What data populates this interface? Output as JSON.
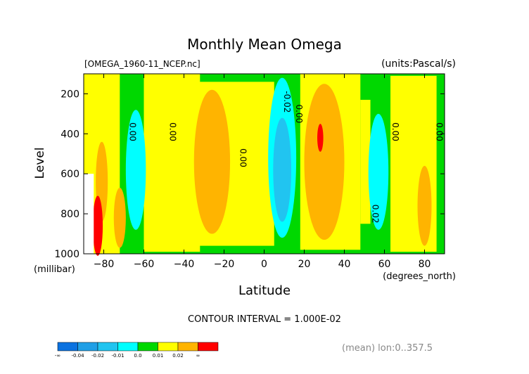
{
  "chart_data": {
    "type": "contour",
    "title": "Monthly Mean Omega",
    "file_label": "[OMEGA_1960-11_NCEP.nc]",
    "units_label": "(units:Pascal/s)",
    "xlabel": "Latitude",
    "x_units": "(degrees_north)",
    "ylabel": "Level",
    "y_units": "(millibar)",
    "xlim": [
      -90,
      90
    ],
    "ylim": [
      1000,
      100
    ],
    "x_ticks": [
      -80,
      -60,
      -40,
      -20,
      0,
      20,
      40,
      60,
      80
    ],
    "x_tick_labels": [
      "−80",
      "−60",
      "−40",
      "−20",
      "0",
      "20",
      "40",
      "60",
      "80"
    ],
    "y_ticks": [
      200,
      400,
      600,
      800,
      1000
    ],
    "y_tick_labels": [
      "200",
      "400",
      "600",
      "800",
      "1000"
    ],
    "contour_interval_text": "CONTOUR INTERVAL = 1.000E-02",
    "footer_text": "(mean) lon:0..357.5",
    "contour_labels": [
      {
        "text": "0.00",
        "x": -67,
        "y": 390
      },
      {
        "text": "0.00",
        "x": -47,
        "y": 390
      },
      {
        "text": "0.00",
        "x": -12,
        "y": 520
      },
      {
        "text": "-0.02",
        "x": 10,
        "y": 240
      },
      {
        "text": "0.00",
        "x": 16,
        "y": 300
      },
      {
        "text": "0.02",
        "x": 54,
        "y": 800
      },
      {
        "text": "0.00",
        "x": 64,
        "y": 390
      },
      {
        "text": "0.00",
        "x": 86,
        "y": 390
      }
    ],
    "legend": {
      "colors": [
        "#0b72e0",
        "#209fe6",
        "#21c4f0",
        "#00ffff",
        "#00d800",
        "#ffff00",
        "#ffb400",
        "#ff0000"
      ],
      "labels": [
        "-∞",
        "-0.04",
        "-0.02",
        "-0.01",
        "0.0",
        "0.01",
        "0.02",
        "∞"
      ]
    },
    "palette": {
      "background_field": "#00d800",
      "neg_light": "#00ffff",
      "neg_mid": "#21c4f0",
      "neg_strong": "#209fe6",
      "pos_light": "#ffff00",
      "pos_mid": "#ffb400",
      "pos_strong": "#ff0000",
      "missing": "#ffffff"
    }
  }
}
